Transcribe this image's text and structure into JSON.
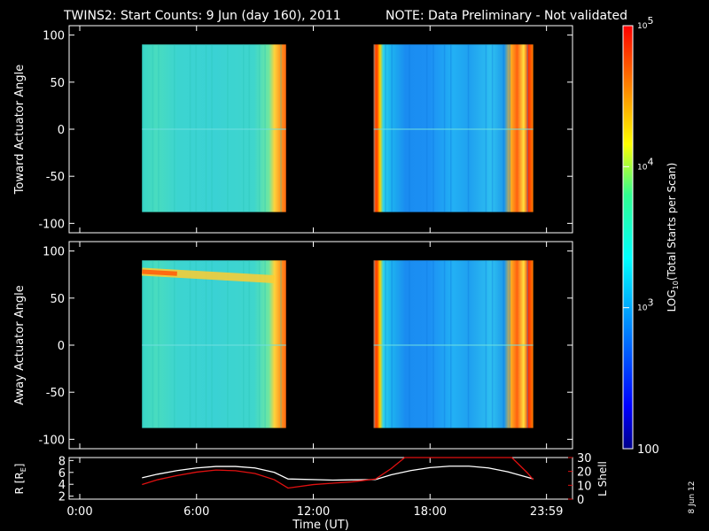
{
  "title": {
    "main": "TWINS2: Start Counts:  9 Jun (day 160), 2011",
    "note": "NOTE: Data Preliminary - Not validated"
  },
  "colors": {
    "note": "#ff2020",
    "orbit_r": "#ffffff",
    "orbit_l": "#e01010",
    "axes": "#ffffff"
  },
  "datestamp": "8 Jun 12",
  "chart_data": [
    {
      "type": "heatmap",
      "panel": "toward",
      "ylabel": "Toward Actuator Angle",
      "ylim": [
        -110,
        110
      ],
      "yticks": [
        100,
        50,
        0,
        -50,
        -100
      ],
      "xlim": [
        0,
        24
      ],
      "angle_range": [
        -88,
        90
      ],
      "time_blocks": [
        [
          3.2,
          10.6
        ],
        [
          15.1,
          23.3
        ]
      ],
      "zscale": "log",
      "features": "second block: high counts at 15.1-15.5 h and 22.2-23.3 h, lower (blue) counts between"
    },
    {
      "type": "heatmap",
      "panel": "away",
      "ylabel": "Away Actuator Angle",
      "ylim": [
        -110,
        110
      ],
      "yticks": [
        100,
        50,
        0,
        -50,
        -100
      ],
      "xlim": [
        0,
        24
      ],
      "angle_range": [
        -88,
        90
      ],
      "time_blocks": [
        [
          3.2,
          10.6
        ],
        [
          15.1,
          23.3
        ]
      ],
      "zscale": "log",
      "features": "first block: orange/yellow band near +78 deg at 3.2 h descending to about +70 deg by 10 h"
    },
    {
      "type": "line",
      "panel": "orbit",
      "ylabel_left": "R [R",
      "ylabel_left_sub": "E",
      "ylabel_left_close": "]",
      "ylabel_right": "L Shell",
      "ylim_left": [
        1.5,
        8.5
      ],
      "yticks_left": [
        2,
        4,
        6,
        8
      ],
      "ylim_right": [
        0,
        30
      ],
      "yticks_right": [
        0,
        10,
        20,
        30
      ],
      "xlabel": "Time (UT)",
      "xticks": [
        {
          "t": 0,
          "label": "0:00"
        },
        {
          "t": 6,
          "label": "6:00"
        },
        {
          "t": 12,
          "label": "12:00"
        },
        {
          "t": 18,
          "label": "18:00"
        },
        {
          "t": 23.983,
          "label": "23:59"
        }
      ],
      "series": [
        {
          "axis": "left",
          "x": [
            3.2,
            4,
            5,
            6,
            7,
            8,
            9,
            10,
            10.7,
            12,
            13,
            14,
            15.2,
            16,
            17,
            18,
            19,
            20,
            21,
            22,
            23.3
          ],
          "values": [
            5.1,
            5.7,
            6.3,
            6.75,
            7.0,
            7.0,
            6.75,
            6.0,
            4.9,
            4.8,
            4.7,
            4.75,
            4.8,
            5.6,
            6.3,
            6.8,
            7.05,
            7.05,
            6.75,
            6.1,
            4.9
          ]
        },
        {
          "axis": "right",
          "x": [
            3.2,
            4,
            5,
            6,
            7,
            8,
            9,
            10,
            10.7,
            12,
            14,
            15.2,
            16,
            16.7,
            22.2,
            23,
            23.3
          ],
          "values": [
            10.5,
            14,
            17,
            19.5,
            21,
            20.5,
            18.5,
            14,
            8,
            10.5,
            12.5,
            14.5,
            22,
            31,
            31,
            19,
            14
          ]
        }
      ]
    },
    {
      "type": "colorbar",
      "label_prefix": "LOG",
      "label_sub": "10",
      "label_suffix": "(Total Starts per Scan)",
      "zlim": [
        100,
        100000
      ],
      "ticks": [
        {
          "value": 100,
          "base": "100",
          "exp": ""
        },
        {
          "value": 1000,
          "base": "10",
          "exp": "3"
        },
        {
          "value": 10000,
          "base": "10",
          "exp": "4"
        },
        {
          "value": 100000,
          "base": "10",
          "exp": "5"
        }
      ]
    }
  ]
}
